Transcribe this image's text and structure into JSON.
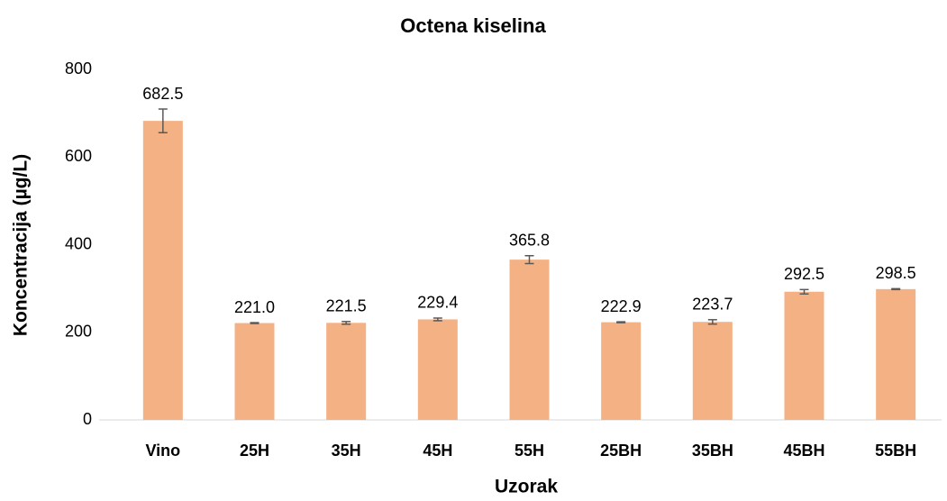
{
  "chart_data": {
    "type": "bar",
    "title": "Octena kiselina",
    "x_label": "Uzorak",
    "y_label": "Koncentracija (µg/L)",
    "categories": [
      "Vino",
      "25H",
      "35H",
      "45H",
      "55H",
      "25BH",
      "35BH",
      "45BH",
      "55BH"
    ],
    "values": [
      682.5,
      221.0,
      221.5,
      229.4,
      365.8,
      222.9,
      223.7,
      292.5,
      298.5
    ],
    "value_labels": [
      "682.5",
      "221.0",
      "221.5",
      "229.4",
      "365.8",
      "222.9",
      "223.7",
      "292.5",
      "298.5"
    ],
    "errors": [
      27,
      1,
      3,
      3,
      9,
      1,
      5,
      5,
      1
    ],
    "color": "#f4b183",
    "error_color": "#595959",
    "ylim": [
      0,
      800
    ],
    "yticks": [
      0,
      200,
      400,
      600,
      800
    ],
    "grid": false
  }
}
